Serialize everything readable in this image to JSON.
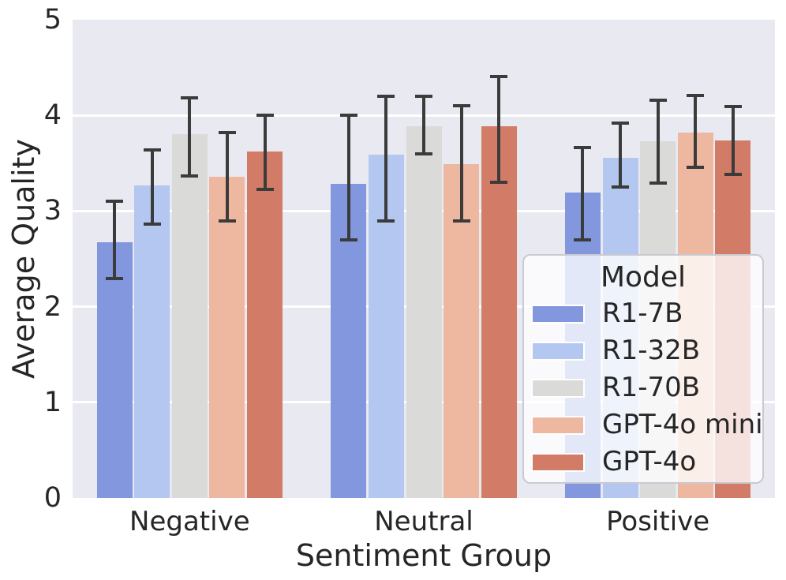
{
  "chart_data": {
    "type": "bar",
    "title": "",
    "xlabel": "Sentiment Group",
    "ylabel": "Average Quality",
    "categories": [
      "Negative",
      "Neutral",
      "Positive"
    ],
    "series": [
      {
        "name": "R1-7B",
        "color": "#8297de",
        "values": [
          2.67,
          3.28,
          3.19
        ],
        "err_low": [
          2.29,
          2.7,
          2.7
        ],
        "err_high": [
          3.1,
          4.0,
          3.66
        ]
      },
      {
        "name": "R1-32B",
        "color": "#b3c7f0",
        "values": [
          3.27,
          3.59,
          3.56
        ],
        "err_low": [
          2.86,
          2.9,
          3.25
        ],
        "err_high": [
          3.64,
          4.2,
          3.92
        ]
      },
      {
        "name": "R1-70B",
        "color": "#dadad8",
        "values": [
          3.8,
          3.89,
          3.73
        ],
        "err_low": [
          3.37,
          3.6,
          3.29
        ],
        "err_high": [
          4.18,
          4.2,
          4.16
        ]
      },
      {
        "name": "GPT-4o mini",
        "color": "#eeb7a0",
        "values": [
          3.36,
          3.49,
          3.82
        ],
        "err_low": [
          2.9,
          2.9,
          3.46
        ],
        "err_high": [
          3.82,
          4.1,
          4.21
        ]
      },
      {
        "name": "GPT-4o",
        "color": "#d27c68",
        "values": [
          3.62,
          3.89,
          3.74
        ],
        "err_low": [
          3.23,
          3.3,
          3.38
        ],
        "err_high": [
          4.0,
          4.41,
          4.09
        ]
      }
    ],
    "ylim": [
      0,
      5
    ],
    "yticks": [
      "0",
      "1",
      "2",
      "3",
      "4",
      "5"
    ],
    "grid": true,
    "legend": {
      "title": "Model",
      "position": "lower right"
    }
  },
  "style": {
    "figure_bg": "#ffffff",
    "plot_bg": "#e9e9f2",
    "grid_color": "#ffffff",
    "errorbar_color": "#3b3b3b",
    "text_color": "#262626",
    "legend_bg": "rgba(255,255,255,0.78)",
    "legend_border": "#c9c9d0"
  }
}
